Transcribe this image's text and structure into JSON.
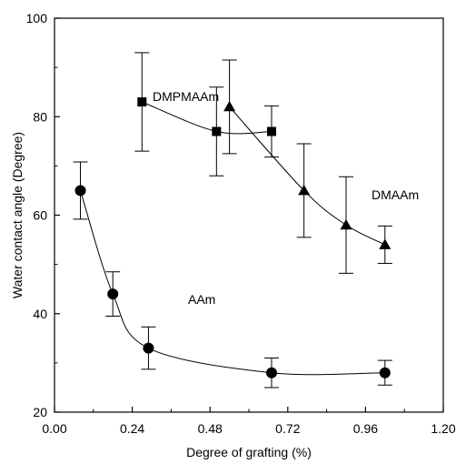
{
  "chart_data": {
    "type": "scatter",
    "title": "",
    "xlabel": "Degree of grafting (%)",
    "ylabel": "Water contact angle (Degree)",
    "xlim": [
      0.0,
      1.2
    ],
    "ylim": [
      20,
      100
    ],
    "xticks": [
      0.0,
      0.24,
      0.48,
      0.72,
      0.96,
      1.2
    ],
    "xtick_labels": [
      "0.00",
      "0.24",
      "0.48",
      "0.72",
      "0.96",
      "1.20"
    ],
    "yticks": [
      20,
      40,
      60,
      80,
      100
    ],
    "ytick_labels": [
      "20",
      "40",
      "60",
      "80",
      "100"
    ],
    "grid": false,
    "legend": "none (series labelled directly on plot)",
    "series": [
      {
        "name": "DMPMAAm",
        "marker": "square",
        "x": [
          0.27,
          0.5,
          0.67
        ],
        "y": [
          83,
          77,
          77
        ],
        "err": [
          10,
          9,
          5.2
        ]
      },
      {
        "name": "DMAAm",
        "marker": "triangle",
        "x": [
          0.54,
          0.77,
          0.9,
          1.02
        ],
        "y": [
          82,
          65,
          58,
          54
        ],
        "err": [
          9.5,
          9.5,
          9.8,
          3.8
        ]
      },
      {
        "name": "AAm",
        "marker": "circle",
        "x": [
          0.08,
          0.18,
          0.29,
          0.67,
          1.02
        ],
        "y": [
          65,
          44,
          33,
          28,
          28
        ],
        "err": [
          5.8,
          4.5,
          4.3,
          3.0,
          2.5
        ]
      }
    ]
  }
}
